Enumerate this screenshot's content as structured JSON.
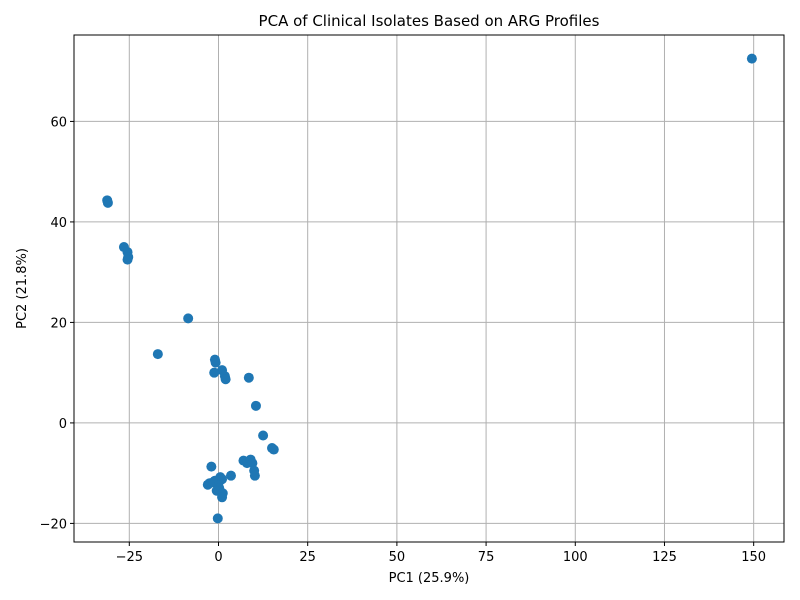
{
  "chart_data": {
    "type": "scatter",
    "title": "PCA of Clinical Isolates Based on ARG Profiles",
    "xlabel": "PC1 (25.9%)",
    "ylabel": "PC2 (21.8%)",
    "xlim": [
      -40.5,
      158.5
    ],
    "ylim": [
      -23.7,
      77.2
    ],
    "xticks": [
      -25,
      0,
      25,
      50,
      75,
      100,
      125,
      150
    ],
    "yticks": [
      -20,
      0,
      20,
      40,
      60
    ],
    "grid": true,
    "marker_color": "#1f77b4",
    "points": [
      {
        "x": 149.5,
        "y": 72.5
      },
      {
        "x": -31.2,
        "y": 44.3
      },
      {
        "x": -31.0,
        "y": 43.8
      },
      {
        "x": -26.5,
        "y": 35.0
      },
      {
        "x": -25.5,
        "y": 34.0
      },
      {
        "x": -25.3,
        "y": 33.0
      },
      {
        "x": -25.5,
        "y": 32.5
      },
      {
        "x": -8.5,
        "y": 20.8
      },
      {
        "x": -17.0,
        "y": 13.7
      },
      {
        "x": -1.0,
        "y": 12.6
      },
      {
        "x": -0.8,
        "y": 12.0
      },
      {
        "x": 1.0,
        "y": 10.5
      },
      {
        "x": -1.2,
        "y": 10.0
      },
      {
        "x": 1.8,
        "y": 9.3
      },
      {
        "x": 2.0,
        "y": 8.7
      },
      {
        "x": 8.5,
        "y": 9.0
      },
      {
        "x": 10.5,
        "y": 3.4
      },
      {
        "x": 12.5,
        "y": -2.5
      },
      {
        "x": 15.0,
        "y": -5.0
      },
      {
        "x": 15.5,
        "y": -5.3
      },
      {
        "x": 7.0,
        "y": -7.5
      },
      {
        "x": 8.0,
        "y": -8.0
      },
      {
        "x": 9.0,
        "y": -7.3
      },
      {
        "x": 9.5,
        "y": -8.0
      },
      {
        "x": 10.0,
        "y": -9.5
      },
      {
        "x": 10.2,
        "y": -10.5
      },
      {
        "x": -2.0,
        "y": -8.7
      },
      {
        "x": 3.5,
        "y": -10.5
      },
      {
        "x": 0.5,
        "y": -10.8
      },
      {
        "x": 1.0,
        "y": -11.2
      },
      {
        "x": -1.0,
        "y": -11.5
      },
      {
        "x": -2.5,
        "y": -12.0
      },
      {
        "x": -3.0,
        "y": -12.3
      },
      {
        "x": -1.5,
        "y": -11.8
      },
      {
        "x": 0.0,
        "y": -12.5
      },
      {
        "x": 0.2,
        "y": -13.0
      },
      {
        "x": -0.5,
        "y": -13.5
      },
      {
        "x": 1.2,
        "y": -14.0
      },
      {
        "x": 1.0,
        "y": -14.8
      },
      {
        "x": -0.2,
        "y": -19.0
      }
    ]
  }
}
